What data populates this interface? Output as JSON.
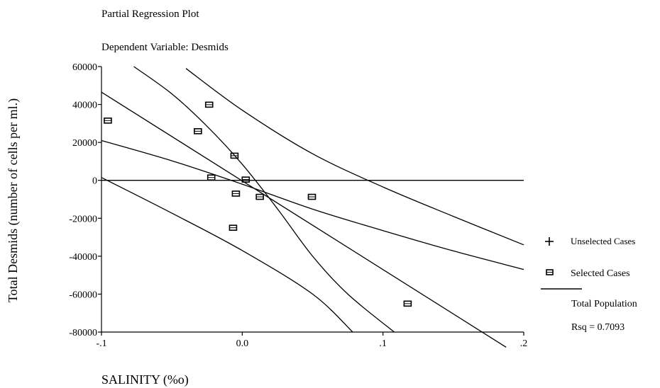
{
  "chart_data": {
    "type": "scatter",
    "title": "Partial Regression Plot",
    "subtitle": "Dependent Variable: Desmids",
    "xlabel": "SALINITY (%o)",
    "ylabel": "Total Desmids (number of cells per ml.)",
    "xlim": [
      -0.1,
      0.2
    ],
    "ylim": [
      -80000,
      60000
    ],
    "x_ticks": [
      -0.1,
      0.0,
      0.1,
      0.2
    ],
    "x_tick_labels": [
      "-.1",
      "0.0",
      ".1",
      ".2"
    ],
    "y_ticks": [
      60000,
      40000,
      20000,
      0,
      -20000,
      -40000,
      -60000,
      -80000
    ],
    "y_tick_labels": [
      "60000",
      "40000",
      "20000",
      "0",
      "-20000",
      "-40000",
      "-60000",
      "-80000"
    ],
    "zero_line": true,
    "points": [
      {
        "x": -0.0955,
        "y": 31500
      },
      {
        "x": -0.0235,
        "y": 39900
      },
      {
        "x": -0.0315,
        "y": 25900
      },
      {
        "x": -0.0055,
        "y": 13000
      },
      {
        "x": -0.022,
        "y": 1500
      },
      {
        "x": 0.0025,
        "y": 400
      },
      {
        "x": -0.0045,
        "y": -7000
      },
      {
        "x": 0.0125,
        "y": -8700
      },
      {
        "x": 0.0495,
        "y": -8700
      },
      {
        "x": -0.0065,
        "y": -25000
      },
      {
        "x": 0.1175,
        "y": -65000
      }
    ],
    "regression_line": {
      "x": [
        -0.1,
        0.1875
      ],
      "y": [
        46500,
        -88000
      ]
    },
    "mean_confidence_band": {
      "upper": {
        "x": [
          -0.1,
          -0.05,
          0.0,
          0.05,
          0.1,
          0.15,
          0.2
        ],
        "y": [
          21000,
          10300,
          -2000,
          -15200,
          -26500,
          -37200,
          -47000
        ]
      },
      "lower": {
        "x": [
          -0.077,
          -0.05,
          -0.025,
          0.0,
          0.025,
          0.05,
          0.075,
          0.108
        ],
        "y": [
          60000,
          45600,
          28500,
          8500,
          -15000,
          -40000,
          -60000,
          -80000
        ]
      }
    },
    "individual_prediction_band": {
      "upper": {
        "x": [
          -0.04,
          0.0,
          0.05,
          0.1,
          0.15,
          0.2
        ],
        "y": [
          59000,
          37000,
          14000,
          -3500,
          -19000,
          -34000
        ]
      },
      "lower": {
        "x": [
          -0.1,
          -0.05,
          0.0,
          0.05,
          0.0785
        ],
        "y": [
          1500,
          -17300,
          -37000,
          -60000,
          -80000
        ]
      }
    },
    "legend": {
      "position": "right",
      "items": [
        {
          "symbol": "+",
          "label": "Unselected Cases"
        },
        {
          "symbol": "square",
          "label": "Selected Cases"
        },
        {
          "symbol": "line",
          "label": "Total Population"
        }
      ],
      "stat": "Rsq = 0.7093"
    }
  }
}
